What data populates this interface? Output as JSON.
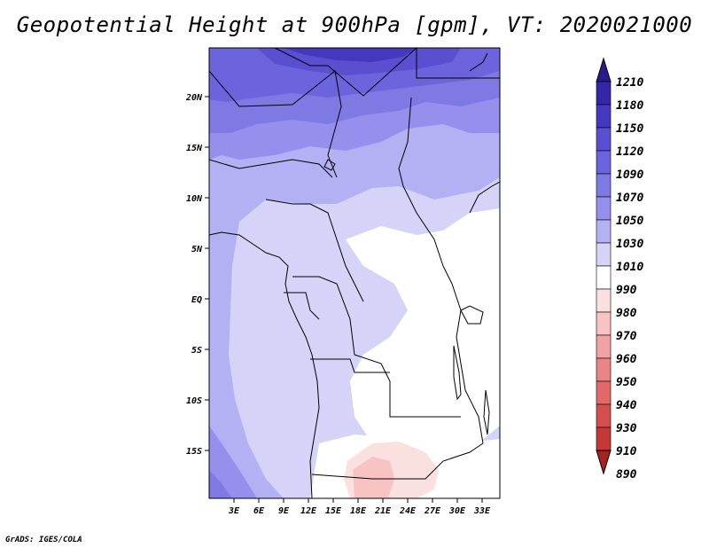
{
  "title": "Geopotential Height at 900hPa [gpm], VT: 2020021000",
  "credit": "GrADS: IGES/COLA",
  "map": {
    "lat_ticks": [
      "20N",
      "15N",
      "10N",
      "5N",
      "EQ",
      "5S",
      "10S",
      "15S"
    ],
    "lon_ticks": [
      "3E",
      "6E",
      "9E",
      "12E",
      "15E",
      "18E",
      "21E",
      "24E",
      "27E",
      "30E",
      "33E"
    ]
  },
  "colorbar": {
    "levels": [
      "1210",
      "1180",
      "1150",
      "1120",
      "1090",
      "1070",
      "1050",
      "1030",
      "1010",
      "990",
      "980",
      "970",
      "960",
      "950",
      "940",
      "930",
      "910",
      "890"
    ],
    "colors": [
      "#2a1b8a",
      "#3526a6",
      "#4538bf",
      "#5a4fd0",
      "#6c64dc",
      "#7f79e4",
      "#968fee",
      "#b3b0f3",
      "#d5d4f8",
      "#ffffff",
      "#fbe0e0",
      "#f7c3c3",
      "#f1a2a2",
      "#ea8585",
      "#e06a6a",
      "#d45050",
      "#c43838",
      "#a82222"
    ]
  }
}
